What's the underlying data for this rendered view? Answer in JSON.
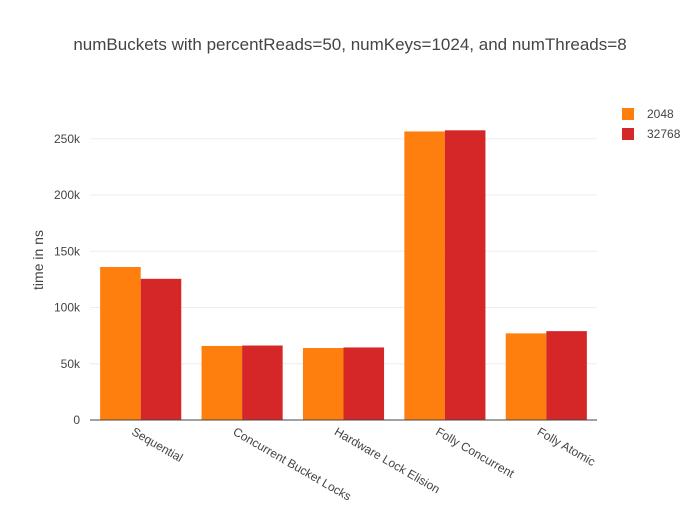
{
  "chart_data": {
    "type": "bar",
    "title": "numBuckets with percentReads=50, numKeys=1024, and numThreads=8",
    "xlabel": "",
    "ylabel": "time in ns",
    "categories": [
      "Sequential",
      "Concurrent Bucket Locks",
      "Hardware Lock Elision",
      "Folly Concurrent",
      "Folly Atomic"
    ],
    "series": [
      {
        "name": "2048",
        "color": "#ff7f0e",
        "values": [
          136000,
          65800,
          64000,
          256500,
          77000
        ]
      },
      {
        "name": "32768",
        "color": "#d62728",
        "values": [
          125500,
          66200,
          64500,
          257500,
          79000
        ]
      }
    ],
    "ylim": [
      0,
      280000
    ],
    "yticks": [
      0,
      50000,
      100000,
      150000,
      200000,
      250000
    ],
    "ytick_labels": [
      "0",
      "50k",
      "100k",
      "150k",
      "200k",
      "250k"
    ],
    "grid": true,
    "legend_position": "top-right"
  }
}
